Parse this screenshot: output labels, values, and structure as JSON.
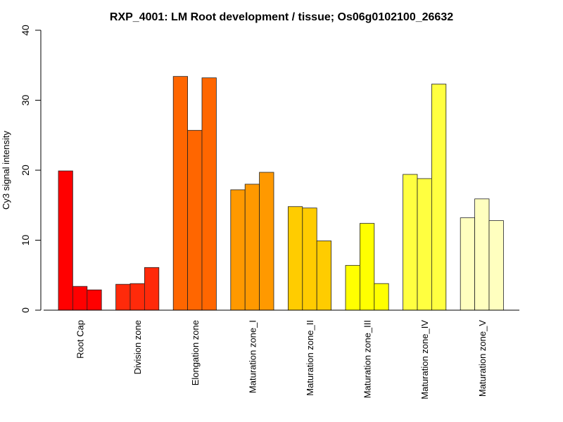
{
  "chart_data": {
    "type": "bar",
    "title": "RXP_4001: LM Root development / tissue; Os06g0102100_26632",
    "xlabel": "",
    "ylabel": "Cy3 signal intensity",
    "ylim": [
      0,
      40
    ],
    "yticks": [
      "0",
      "10",
      "20",
      "30",
      "40"
    ],
    "grid": false,
    "categories": [
      "Root Cap",
      "Division zone",
      "Elongation zone",
      "Maturation zone_I",
      "Maturation zone_II",
      "Maturation zone_III",
      "Maturation zone_IV",
      "Maturation zone_V"
    ],
    "colors": [
      "#FF0000",
      "#FF2A0A",
      "#FF6600",
      "#FF9900",
      "#FFCC00",
      "#FFFF00",
      "#FFFF40",
      "#FFFFBF"
    ],
    "values": [
      [
        19.9,
        3.4,
        2.9
      ],
      [
        3.7,
        3.8,
        6.1
      ],
      [
        33.4,
        25.7,
        33.2
      ],
      [
        17.2,
        18.0,
        19.7
      ],
      [
        14.8,
        14.6,
        9.9
      ],
      [
        6.4,
        12.4,
        3.8
      ],
      [
        19.4,
        18.8,
        32.3
      ],
      [
        13.2,
        15.9,
        12.8
      ]
    ]
  }
}
